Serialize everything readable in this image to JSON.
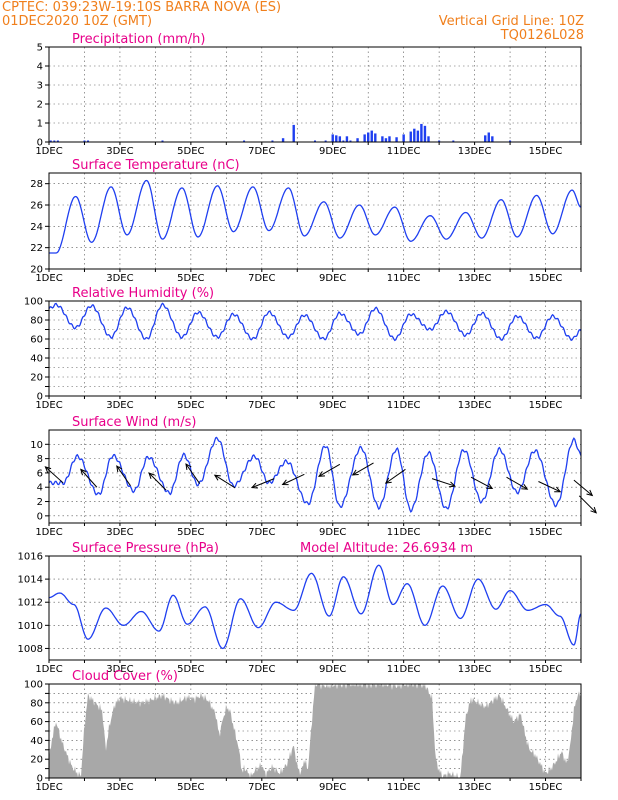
{
  "header": {
    "left_line1": "CPTEC:   039:23W-19:10S   BARRA NOVA (ES)",
    "left_line2": "01DEC2020 10Z (GMT)",
    "right_line1": "Vertical Grid Line: 10Z",
    "right_line2": "TQ0126L028"
  },
  "colors": {
    "header": "#f07f1c",
    "title": "#e8008a",
    "line": "#1f3ff0",
    "cloud": "#a8a8a8",
    "bar": "#1f3ff0"
  },
  "chart_data": [
    {
      "type": "bar",
      "title": "Precipitation (mm/h)",
      "ylim": [
        0,
        5
      ],
      "yticks": [
        0,
        1,
        2,
        3,
        4,
        5
      ],
      "xlim": [
        0,
        15
      ],
      "xticks": [
        "1DEC",
        "3DEC",
        "5DEC",
        "7DEC",
        "9DEC",
        "11DEC",
        "13DEC",
        "15DEC"
      ],
      "x": [
        6.6,
        6.9,
        8.0,
        8.1,
        8.2,
        8.4,
        8.7,
        8.9,
        9.0,
        9.1,
        9.2,
        9.4,
        9.5,
        9.6,
        9.8,
        10.0,
        10.2,
        10.3,
        10.4,
        10.5,
        10.6,
        10.7,
        12.3,
        12.4,
        12.5
      ],
      "values": [
        0.2,
        0.9,
        0.4,
        0.35,
        0.3,
        0.3,
        0.2,
        0.4,
        0.5,
        0.6,
        0.45,
        0.3,
        0.2,
        0.3,
        0.25,
        0.4,
        0.55,
        0.7,
        0.6,
        0.95,
        0.85,
        0.3,
        0.35,
        0.5,
        0.3
      ]
    },
    {
      "type": "line",
      "title": "Surface Temperature (nC)",
      "ylim": [
        20,
        29
      ],
      "yticks": [
        20,
        22,
        24,
        26,
        28
      ],
      "xlim": [
        0,
        15
      ],
      "xticks": [
        "1DEC",
        "3DEC",
        "5DEC",
        "7DEC",
        "9DEC",
        "11DEC",
        "13DEC",
        "15DEC"
      ],
      "minima": [
        [
          0.2,
          21.5
        ],
        [
          1.2,
          22.5
        ],
        [
          2.2,
          23.2
        ],
        [
          3.2,
          22.8
        ],
        [
          4.2,
          23.0
        ],
        [
          5.2,
          23.5
        ],
        [
          6.2,
          23.6
        ],
        [
          7.2,
          23.1
        ],
        [
          8.2,
          22.9
        ],
        [
          9.2,
          23.2
        ],
        [
          10.2,
          22.6
        ],
        [
          11.2,
          22.8
        ],
        [
          12.2,
          22.9
        ],
        [
          13.2,
          23.0
        ],
        [
          14.2,
          23.3
        ]
      ],
      "maxima": [
        [
          0.75,
          26.8
        ],
        [
          1.75,
          27.7
        ],
        [
          2.75,
          28.3
        ],
        [
          3.75,
          27.6
        ],
        [
          4.75,
          27.8
        ],
        [
          5.75,
          27.7
        ],
        [
          6.75,
          27.6
        ],
        [
          7.75,
          26.3
        ],
        [
          8.75,
          26.0
        ],
        [
          9.75,
          25.8
        ],
        [
          10.75,
          25.0
        ],
        [
          11.75,
          25.3
        ],
        [
          12.75,
          26.5
        ],
        [
          13.75,
          26.9
        ],
        [
          14.75,
          27.4
        ]
      ],
      "end": [
        15,
        25.8
      ]
    },
    {
      "type": "line",
      "title": "Relative Humidity (%)",
      "ylim": [
        0,
        100
      ],
      "yticks": [
        0,
        10,
        20,
        30,
        40,
        50,
        60,
        70,
        80,
        90,
        100
      ],
      "ytick_labels": [
        0,
        20,
        40,
        60,
        80,
        100
      ],
      "xlim": [
        0,
        15
      ],
      "xticks": [
        "1DEC",
        "3DEC",
        "5DEC",
        "7DEC",
        "9DEC",
        "11DEC",
        "13DEC",
        "15DEC"
      ],
      "minima": [
        [
          0.75,
          72
        ],
        [
          1.75,
          62
        ],
        [
          2.75,
          60
        ],
        [
          3.75,
          62
        ],
        [
          4.75,
          62
        ],
        [
          5.75,
          60
        ],
        [
          6.75,
          62
        ],
        [
          7.75,
          60
        ],
        [
          8.75,
          65
        ],
        [
          9.75,
          60
        ],
        [
          10.75,
          70
        ],
        [
          11.75,
          64
        ],
        [
          12.75,
          60
        ],
        [
          13.75,
          61
        ],
        [
          14.75,
          60
        ]
      ],
      "maxima": [
        [
          0.2,
          96
        ],
        [
          1.2,
          95
        ],
        [
          2.2,
          93
        ],
        [
          3.2,
          96
        ],
        [
          4.2,
          88
        ],
        [
          5.2,
          86
        ],
        [
          6.2,
          88
        ],
        [
          7.2,
          85
        ],
        [
          8.2,
          87
        ],
        [
          9.2,
          92
        ],
        [
          10.2,
          86
        ],
        [
          11.2,
          89
        ],
        [
          12.2,
          87
        ],
        [
          13.2,
          84
        ],
        [
          14.2,
          84
        ]
      ],
      "start": [
        0,
        92
      ],
      "end": [
        15,
        69
      ]
    },
    {
      "type": "line",
      "title": "Surface Wind (m/s)",
      "ylim": [
        -1,
        12
      ],
      "yticks": [
        0,
        2,
        4,
        6,
        8,
        10
      ],
      "xlim": [
        0,
        15
      ],
      "xticks": [
        "1DEC",
        "3DEC",
        "5DEC",
        "7DEC",
        "9DEC",
        "11DEC",
        "13DEC",
        "15DEC"
      ],
      "minima": [
        [
          0.4,
          4.6
        ],
        [
          1.4,
          3.0
        ],
        [
          2.4,
          3.5
        ],
        [
          3.4,
          3.2
        ],
        [
          4.2,
          4.4
        ],
        [
          5.2,
          4.2
        ],
        [
          6.2,
          4.6
        ],
        [
          7.3,
          1.7
        ],
        [
          8.2,
          1.3
        ],
        [
          9.3,
          1.2
        ],
        [
          10.2,
          0.8
        ],
        [
          11.2,
          1.0
        ],
        [
          12.2,
          2.0
        ],
        [
          13.2,
          3.3
        ],
        [
          14.3,
          1.5
        ]
      ],
      "maxima": [
        [
          0.8,
          8.3
        ],
        [
          1.8,
          8.4
        ],
        [
          2.8,
          8.2
        ],
        [
          3.8,
          8.5
        ],
        [
          4.75,
          10.8
        ],
        [
          5.8,
          8.3
        ],
        [
          6.7,
          7.6
        ],
        [
          7.8,
          9.8
        ],
        [
          8.8,
          9.5
        ],
        [
          9.8,
          9.3
        ],
        [
          10.7,
          8.8
        ],
        [
          11.7,
          9.2
        ],
        [
          12.7,
          9.3
        ],
        [
          13.7,
          9.1
        ],
        [
          14.8,
          10.6
        ]
      ],
      "end": [
        15,
        8.5
      ],
      "arrows": [
        [
          0.4,
          4.6,
          228
        ],
        [
          1.35,
          4.0,
          222
        ],
        [
          2.3,
          4.2,
          215
        ],
        [
          3.3,
          3.6,
          225
        ],
        [
          4.25,
          4.5,
          215
        ],
        [
          5.25,
          3.9,
          238
        ],
        [
          6.35,
          5.2,
          292
        ],
        [
          7.2,
          5.8,
          295
        ],
        [
          8.2,
          7.2,
          300
        ],
        [
          9.15,
          7.4,
          300
        ],
        [
          10.05,
          6.5,
          305
        ],
        [
          10.8,
          5.2,
          72
        ],
        [
          11.9,
          5.4,
          62
        ],
        [
          12.9,
          5.4,
          60
        ],
        [
          13.8,
          4.8,
          65
        ],
        [
          14.8,
          5.0,
          50
        ],
        [
          14.95,
          2.8,
          45
        ]
      ]
    },
    {
      "type": "line",
      "title": "Surface Pressure (hPa)",
      "annotation": "Model Altitude: 26.6934 m",
      "ylim": [
        1007,
        1016
      ],
      "yticks": [
        1008,
        1010,
        1012,
        1014,
        1016
      ],
      "xlim": [
        0,
        15
      ],
      "xticks": [
        "1DEC",
        "3DEC",
        "5DEC",
        "7DEC",
        "9DEC",
        "11DEC",
        "13DEC",
        "15DEC"
      ],
      "extrema": [
        [
          0,
          1012.4
        ],
        [
          0.3,
          1012.8
        ],
        [
          0.7,
          1011.8
        ],
        [
          1.1,
          1008.8
        ],
        [
          1.6,
          1011.5
        ],
        [
          2.1,
          1010.0
        ],
        [
          2.6,
          1011.2
        ],
        [
          3.1,
          1009.5
        ],
        [
          3.5,
          1012.6
        ],
        [
          3.9,
          1010.1
        ],
        [
          4.4,
          1011.6
        ],
        [
          4.9,
          1008.0
        ],
        [
          5.4,
          1012.3
        ],
        [
          5.9,
          1009.8
        ],
        [
          6.4,
          1012.0
        ],
        [
          6.9,
          1011.3
        ],
        [
          7.4,
          1014.5
        ],
        [
          7.9,
          1010.8
        ],
        [
          8.3,
          1014.2
        ],
        [
          8.8,
          1011.0
        ],
        [
          9.3,
          1015.2
        ],
        [
          9.7,
          1011.8
        ],
        [
          10.1,
          1013.6
        ],
        [
          10.6,
          1010.0
        ],
        [
          11.1,
          1013.4
        ],
        [
          11.6,
          1010.6
        ],
        [
          12.1,
          1014.0
        ],
        [
          12.6,
          1011.4
        ],
        [
          13.0,
          1013.0
        ],
        [
          13.5,
          1011.3
        ],
        [
          14.0,
          1011.8
        ],
        [
          14.4,
          1010.8
        ],
        [
          14.8,
          1008.3
        ],
        [
          15,
          1011.0
        ]
      ]
    },
    {
      "type": "area",
      "title": "Cloud Cover (%)",
      "ylim": [
        0,
        100
      ],
      "yticks": [
        0,
        10,
        20,
        30,
        40,
        50,
        60,
        70,
        80,
        90,
        100
      ],
      "ytick_labels": [
        0,
        20,
        40,
        60,
        80,
        100
      ],
      "xlim": [
        0,
        15
      ],
      "xticks": [
        "1DEC",
        "3DEC",
        "5DEC",
        "7DEC",
        "9DEC",
        "11DEC",
        "13DEC",
        "15DEC"
      ],
      "profile": [
        [
          0,
          20
        ],
        [
          0.1,
          45
        ],
        [
          0.2,
          60
        ],
        [
          0.35,
          40
        ],
        [
          0.5,
          25
        ],
        [
          0.65,
          12
        ],
        [
          0.8,
          5
        ],
        [
          0.9,
          2
        ],
        [
          1.0,
          55
        ],
        [
          1.1,
          88
        ],
        [
          1.3,
          80
        ],
        [
          1.5,
          72
        ],
        [
          1.6,
          30
        ],
        [
          1.7,
          55
        ],
        [
          1.85,
          78
        ],
        [
          2.0,
          85
        ],
        [
          2.3,
          82
        ],
        [
          2.6,
          80
        ],
        [
          2.8,
          82
        ],
        [
          3.0,
          85
        ],
        [
          3.2,
          88
        ],
        [
          3.4,
          83
        ],
        [
          3.6,
          80
        ],
        [
          3.9,
          86
        ],
        [
          4.1,
          84
        ],
        [
          4.3,
          88
        ],
        [
          4.5,
          82
        ],
        [
          4.7,
          68
        ],
        [
          4.8,
          45
        ],
        [
          4.9,
          62
        ],
        [
          5.0,
          75
        ],
        [
          5.1,
          72
        ],
        [
          5.2,
          55
        ],
        [
          5.3,
          40
        ],
        [
          5.4,
          20
        ],
        [
          5.45,
          3
        ],
        [
          5.5,
          12
        ],
        [
          5.6,
          6
        ],
        [
          5.7,
          2
        ],
        [
          5.8,
          8
        ],
        [
          6.0,
          14
        ],
        [
          6.1,
          4
        ],
        [
          6.3,
          12
        ],
        [
          6.5,
          5
        ],
        [
          6.7,
          14
        ],
        [
          6.9,
          35
        ],
        [
          7.0,
          12
        ],
        [
          7.1,
          5
        ],
        [
          7.2,
          20
        ],
        [
          7.3,
          9
        ],
        [
          7.5,
          100
        ],
        [
          7.8,
          98
        ],
        [
          8.2,
          99
        ],
        [
          8.6,
          100
        ],
        [
          9.0,
          99
        ],
        [
          9.4,
          100
        ],
        [
          9.8,
          98
        ],
        [
          10.2,
          100
        ],
        [
          10.6,
          99
        ],
        [
          10.8,
          85
        ],
        [
          10.9,
          20
        ],
        [
          11.0,
          8
        ],
        [
          11.1,
          2
        ],
        [
          11.3,
          5
        ],
        [
          11.6,
          0
        ],
        [
          11.75,
          65
        ],
        [
          11.9,
          84
        ],
        [
          12.1,
          80
        ],
        [
          12.3,
          76
        ],
        [
          12.5,
          82
        ],
        [
          12.7,
          88
        ],
        [
          12.9,
          74
        ],
        [
          13.1,
          60
        ],
        [
          13.3,
          68
        ],
        [
          13.45,
          42
        ],
        [
          13.55,
          30
        ],
        [
          13.7,
          25
        ],
        [
          13.85,
          15
        ],
        [
          14.0,
          5
        ],
        [
          14.15,
          10
        ],
        [
          14.3,
          18
        ],
        [
          14.45,
          28
        ],
        [
          14.6,
          15
        ],
        [
          14.7,
          35
        ],
        [
          14.8,
          72
        ],
        [
          14.9,
          88
        ],
        [
          15,
          90
        ]
      ]
    }
  ]
}
